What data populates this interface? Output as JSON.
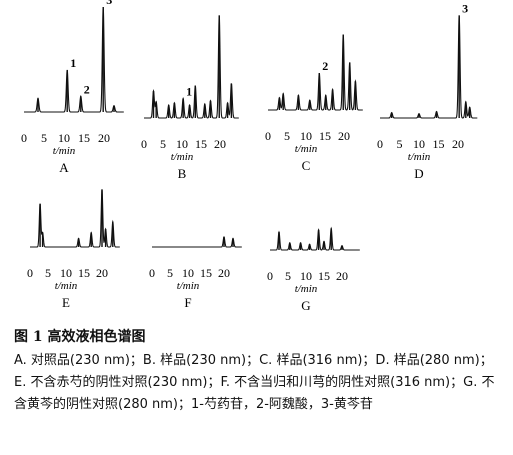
{
  "figure": {
    "title": "图 1   高效液相色谱图",
    "legend": "A. 对照品(230 nm)；B. 样品(230 nm)；C. 样品(316 nm)；D. 样品(280 nm)；E. 不含赤芍的阴性对照(230 nm)；F. 不含当归和川芎的阴性对照(316 nm)；G. 不含黄芩的阴性对照(280 nm)；1-芍药苷，2-阿魏酸，3-黄芩苷"
  },
  "chart_data": [
    {
      "type": "line",
      "panel": "A",
      "xlabel": "t/min",
      "xlim": [
        0,
        25
      ],
      "ylim": [
        0,
        1
      ],
      "xticks": [
        0,
        5,
        10,
        15,
        20
      ],
      "peaks": [
        [
          3.5,
          0.13
        ],
        [
          10.8,
          0.4
        ],
        [
          14.2,
          0.15
        ],
        [
          19.8,
          1.0
        ],
        [
          22.5,
          0.06
        ]
      ],
      "peak_labels": [
        {
          "x": 10.8,
          "label": "1"
        },
        {
          "x": 14.2,
          "label": "2"
        },
        {
          "x": 19.8,
          "label": "3"
        }
      ]
    },
    {
      "type": "line",
      "panel": "B",
      "xlabel": "t/min",
      "xlim": [
        0,
        25
      ],
      "ylim": [
        0,
        1
      ],
      "xticks": [
        0,
        5,
        10,
        15,
        20
      ],
      "peaks": [
        [
          2.5,
          0.25
        ],
        [
          3.2,
          0.15
        ],
        [
          6.5,
          0.12
        ],
        [
          8,
          0.14
        ],
        [
          10.3,
          0.18
        ],
        [
          12,
          0.12
        ],
        [
          13.5,
          0.3
        ],
        [
          16,
          0.13
        ],
        [
          17.5,
          0.16
        ],
        [
          19.8,
          0.95
        ],
        [
          22,
          0.14
        ],
        [
          23,
          0.32
        ]
      ],
      "peak_labels": [
        {
          "x": 10.3,
          "label": "1"
        }
      ]
    },
    {
      "type": "line",
      "panel": "C",
      "xlabel": "t/min",
      "xlim": [
        0,
        25
      ],
      "ylim": [
        0,
        1
      ],
      "xticks": [
        0,
        5,
        10,
        15,
        20
      ],
      "peaks": [
        [
          3,
          0.15
        ],
        [
          4,
          0.2
        ],
        [
          8,
          0.18
        ],
        [
          11,
          0.12
        ],
        [
          13.5,
          0.45
        ],
        [
          15.2,
          0.18
        ],
        [
          17,
          0.25
        ],
        [
          19.8,
          0.92
        ],
        [
          21.5,
          0.58
        ],
        [
          23,
          0.35
        ]
      ],
      "peak_labels": [
        {
          "x": 13.5,
          "label": "2"
        }
      ]
    },
    {
      "type": "line",
      "panel": "D",
      "xlabel": "t/min",
      "xlim": [
        0,
        25
      ],
      "ylim": [
        0,
        1
      ],
      "xticks": [
        0,
        5,
        10,
        15,
        20
      ],
      "peaks": [
        [
          3,
          0.05
        ],
        [
          10,
          0.04
        ],
        [
          14.5,
          0.06
        ],
        [
          20.3,
          0.95
        ],
        [
          22,
          0.15
        ],
        [
          23,
          0.1
        ]
      ],
      "peak_labels": [
        {
          "x": 20.3,
          "label": "3"
        }
      ]
    },
    {
      "type": "line",
      "panel": "E",
      "xlabel": "t/min",
      "xlim": [
        0,
        25
      ],
      "ylim": [
        0,
        1
      ],
      "xticks": [
        0,
        5,
        10,
        15,
        20
      ],
      "peaks": [
        [
          2.8,
          0.6
        ],
        [
          3.5,
          0.2
        ],
        [
          13.5,
          0.12
        ],
        [
          17,
          0.2
        ],
        [
          20,
          0.8
        ],
        [
          21,
          0.25
        ],
        [
          23,
          0.35
        ]
      ],
      "peak_labels": []
    },
    {
      "type": "line",
      "panel": "F",
      "xlabel": "t/min",
      "xlim": [
        0,
        25
      ],
      "ylim": [
        0,
        1
      ],
      "xticks": [
        0,
        5,
        10,
        15,
        20
      ],
      "peaks": [
        [
          20,
          0.14
        ],
        [
          22.5,
          0.12
        ]
      ],
      "peak_labels": []
    },
    {
      "type": "line",
      "panel": "G",
      "xlabel": "t/min",
      "xlim": [
        0,
        25
      ],
      "ylim": [
        0,
        1
      ],
      "xticks": [
        0,
        5,
        10,
        15,
        20
      ],
      "peaks": [
        [
          2.5,
          0.25
        ],
        [
          5.5,
          0.1
        ],
        [
          8.5,
          0.1
        ],
        [
          11,
          0.08
        ],
        [
          13.5,
          0.28
        ],
        [
          15,
          0.12
        ],
        [
          17,
          0.3
        ],
        [
          20,
          0.06
        ]
      ],
      "peak_labels": []
    }
  ]
}
